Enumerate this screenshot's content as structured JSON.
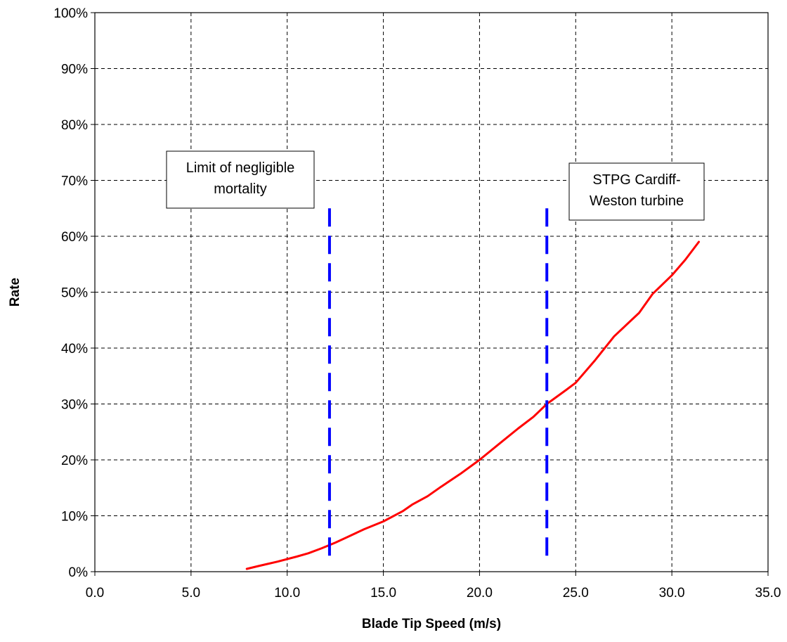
{
  "chart_data": {
    "type": "line",
    "title": "",
    "xlabel": "Blade Tip Speed (m/s)",
    "ylabel": "Rate",
    "xlim": [
      0,
      35
    ],
    "ylim": [
      0,
      1
    ],
    "x_ticks": [
      "0.0",
      "5.0",
      "10.0",
      "15.0",
      "20.0",
      "25.0",
      "30.0",
      "35.0"
    ],
    "y_ticks": [
      "0%",
      "10%",
      "20%",
      "30%",
      "40%",
      "50%",
      "60%",
      "70%",
      "80%",
      "90%",
      "100%"
    ],
    "grid": true,
    "legend": "none",
    "series": [
      {
        "color": "#ff0000",
        "x": [
          7.9,
          8.5,
          9.5,
          10.5,
          11.1,
          11.8,
          12.5,
          13.2,
          14.0,
          15.0,
          16.0,
          16.5,
          17.3,
          18.0,
          19.0,
          20.0,
          21.0,
          22.0,
          22.8,
          23.5,
          24.5,
          25.0,
          26.0,
          27.0,
          28.3,
          29.0,
          30.0,
          30.7,
          31.4
        ],
        "y": [
          0.005,
          0.01,
          0.018,
          0.027,
          0.033,
          0.042,
          0.052,
          0.063,
          0.076,
          0.09,
          0.108,
          0.12,
          0.135,
          0.152,
          0.175,
          0.2,
          0.228,
          0.256,
          0.277,
          0.3,
          0.325,
          0.338,
          0.378,
          0.421,
          0.463,
          0.497,
          0.53,
          0.558,
          0.59
        ]
      }
    ],
    "vlines": [
      {
        "x": 12.2,
        "y_top": 0.65,
        "color": "#0000ff"
      },
      {
        "x": 23.5,
        "y_top": 0.65,
        "color": "#0000ff"
      }
    ],
    "annotations": [
      {
        "lines": [
          "Limit of negligible",
          "mortality"
        ]
      },
      {
        "lines": [
          "STPG Cardiff-",
          "Weston turbine"
        ]
      }
    ]
  }
}
